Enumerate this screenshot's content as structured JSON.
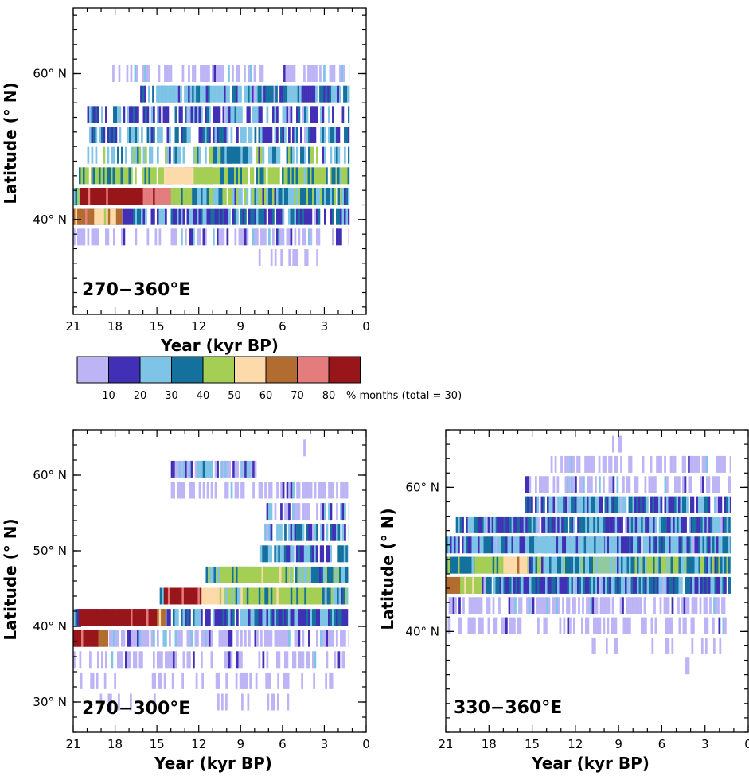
{
  "chart_data": [
    {
      "type": "heatmap",
      "panel_label": "270−360°E",
      "xlabel": "Year (kyr BP)",
      "ylabel": "Latitude (° N)",
      "xlim": [
        21,
        0
      ],
      "ylim": [
        27,
        69
      ],
      "xticks": [
        21,
        18,
        15,
        12,
        9,
        6,
        3,
        0
      ],
      "yticks": [
        {
          "value": 40,
          "label": "40° N"
        },
        {
          "value": 60,
          "label": "60° N"
        }
      ],
      "bands": [
        {
          "lat": 60,
          "from": 18.2,
          "to": 1.2,
          "base": 0,
          "core": 0.15,
          "gaps": 0.45,
          "seed": 11
        },
        {
          "lat": 57.2,
          "from": 16.2,
          "to": 1.2,
          "base": 1,
          "core": 0.8,
          "gaps": 0.05,
          "seed": 12
        },
        {
          "lat": 54.4,
          "from": 20.0,
          "to": 1.2,
          "base": 1,
          "core": 0.45,
          "gaps": 0.35,
          "seed": 13
        },
        {
          "lat": 51.6,
          "from": 20.0,
          "to": 1.2,
          "base": 1,
          "core": 0.5,
          "gaps": 0.35,
          "seed": 14
        },
        {
          "lat": 48.8,
          "from": 20.0,
          "to": 1.2,
          "base": 2,
          "core": 0.4,
          "gaps": 0.35,
          "seed": 15
        },
        {
          "lat": 46.0,
          "from": 20.6,
          "to": 1.2,
          "base": 3,
          "core": 0.55,
          "gaps": 0.1,
          "seed": 16
        },
        {
          "lat": 43.2,
          "from": 21.0,
          "to": 1.2,
          "base": 2,
          "core": 0.6,
          "gaps": 0.05,
          "seed": 17
        },
        {
          "lat": 40.4,
          "from": 21.0,
          "to": 1.2,
          "base": 1,
          "core": 0.5,
          "gaps": 0.1,
          "seed": 18
        },
        {
          "lat": 37.6,
          "from": 21.0,
          "to": 1.3,
          "base": 0,
          "core": 0.3,
          "gaps": 0.5,
          "seed": 19
        },
        {
          "lat": 34.8,
          "from": 8.0,
          "to": 3.5,
          "base": 0,
          "core": 0.1,
          "gaps": 0.7,
          "seed": 20
        }
      ],
      "hotspots": [
        {
          "lat": 43.2,
          "from": 20.5,
          "to": 16.0,
          "level": 8
        },
        {
          "lat": 43.2,
          "from": 16.0,
          "to": 14.0,
          "level": 7
        },
        {
          "lat": 40.4,
          "from": 21.0,
          "to": 19.5,
          "level": 6
        },
        {
          "lat": 40.4,
          "from": 19.5,
          "to": 17.5,
          "level": 5
        },
        {
          "lat": 46.0,
          "from": 14.5,
          "to": 12.5,
          "level": 5
        },
        {
          "lat": 46.0,
          "from": 12.5,
          "to": 11.0,
          "level": 4
        },
        {
          "lat": 43.2,
          "from": 14.0,
          "to": 12.5,
          "level": 4
        },
        {
          "lat": 48.8,
          "from": 11.0,
          "to": 8.5,
          "level": 3
        },
        {
          "lat": 57.2,
          "from": 15.0,
          "to": 13.5,
          "level": 2
        }
      ]
    },
    {
      "type": "heatmap",
      "panel_label": "270−300°E",
      "xlabel": "Year (kyr BP)",
      "ylabel": "Latitude (° N)",
      "xlim": [
        21,
        0
      ],
      "ylim": [
        26,
        66
      ],
      "xticks": [
        21,
        18,
        15,
        12,
        9,
        6,
        3,
        0
      ],
      "yticks": [
        {
          "value": 30,
          "label": "30° N"
        },
        {
          "value": 40,
          "label": "40° N"
        },
        {
          "value": 50,
          "label": "50° N"
        },
        {
          "value": 60,
          "label": "60° N"
        }
      ],
      "bands": [
        {
          "lat": 63.6,
          "from": 4.5,
          "to": 3.8,
          "base": 0,
          "core": 0,
          "gaps": 0.6,
          "seed": 31
        },
        {
          "lat": 60.8,
          "from": 14.0,
          "to": 7.5,
          "base": 0,
          "core": 0.6,
          "gaps": 0.2,
          "seed": 32
        },
        {
          "lat": 58.0,
          "from": 14.0,
          "to": 1.3,
          "base": 0,
          "core": 0.1,
          "gaps": 0.45,
          "seed": 33
        },
        {
          "lat": 55.2,
          "from": 7.3,
          "to": 1.3,
          "base": 0,
          "core": 0.35,
          "gaps": 0.35,
          "seed": 34
        },
        {
          "lat": 52.4,
          "from": 7.3,
          "to": 1.3,
          "base": 1,
          "core": 0.5,
          "gaps": 0.2,
          "seed": 35
        },
        {
          "lat": 49.6,
          "from": 7.6,
          "to": 1.3,
          "base": 1,
          "core": 0.6,
          "gaps": 0.1,
          "seed": 36
        },
        {
          "lat": 46.8,
          "from": 11.5,
          "to": 1.3,
          "base": 2,
          "core": 0.6,
          "gaps": 0.05,
          "seed": 37
        },
        {
          "lat": 44.0,
          "from": 14.8,
          "to": 1.3,
          "base": 2,
          "core": 0.6,
          "gaps": 0.05,
          "seed": 38
        },
        {
          "lat": 41.2,
          "from": 21.0,
          "to": 1.3,
          "base": 1,
          "core": 0.55,
          "gaps": 0.05,
          "seed": 39
        },
        {
          "lat": 38.4,
          "from": 21.0,
          "to": 1.3,
          "base": 0,
          "core": 0.3,
          "gaps": 0.35,
          "seed": 40
        },
        {
          "lat": 35.6,
          "from": 21.0,
          "to": 1.5,
          "base": 0,
          "core": 0.2,
          "gaps": 0.5,
          "seed": 41
        },
        {
          "lat": 32.8,
          "from": 20.5,
          "to": 2.0,
          "base": 0,
          "core": 0,
          "gaps": 0.75,
          "seed": 42
        },
        {
          "lat": 30.0,
          "from": 20.8,
          "to": 4.5,
          "base": 0,
          "core": 0,
          "gaps": 0.85,
          "seed": 43
        }
      ],
      "hotspots": [
        {
          "lat": 41.2,
          "from": 20.6,
          "to": 15.0,
          "level": 8
        },
        {
          "lat": 38.4,
          "from": 21.0,
          "to": 19.2,
          "level": 8
        },
        {
          "lat": 44.0,
          "from": 14.5,
          "to": 11.8,
          "level": 8
        },
        {
          "lat": 44.0,
          "from": 11.8,
          "to": 10.2,
          "level": 5
        },
        {
          "lat": 46.8,
          "from": 10.5,
          "to": 5.5,
          "level": 4
        },
        {
          "lat": 44.0,
          "from": 9.0,
          "to": 3.0,
          "level": 4
        },
        {
          "lat": 41.2,
          "from": 15.0,
          "to": 14.4,
          "level": 6
        },
        {
          "lat": 38.4,
          "from": 19.2,
          "to": 18.5,
          "level": 6
        },
        {
          "lat": 60.8,
          "from": 12.0,
          "to": 11.0,
          "level": 2
        }
      ]
    },
    {
      "type": "heatmap",
      "panel_label": "330−360°E",
      "xlabel": "Year (kyr BP)",
      "ylabel": "Latitude (° N)",
      "xlim": [
        21,
        0
      ],
      "ylim": [
        26,
        68
      ],
      "xticks": [
        21,
        18,
        15,
        12,
        9,
        6,
        3,
        0
      ],
      "yticks": [
        {
          "value": 40,
          "label": "40° N"
        },
        {
          "value": 60,
          "label": "60° N"
        }
      ],
      "bands": [
        {
          "lat": 66.0,
          "from": 10.0,
          "to": 8.8,
          "base": 0,
          "core": 0,
          "gaps": 0.7,
          "seed": 51
        },
        {
          "lat": 63.2,
          "from": 14.0,
          "to": 1.2,
          "base": 0,
          "core": 0.05,
          "gaps": 0.5,
          "seed": 52
        },
        {
          "lat": 60.4,
          "from": 15.5,
          "to": 1.2,
          "base": 0,
          "core": 0.1,
          "gaps": 0.4,
          "seed": 53
        },
        {
          "lat": 57.6,
          "from": 15.5,
          "to": 1.2,
          "base": 1,
          "core": 0.55,
          "gaps": 0.1,
          "seed": 54
        },
        {
          "lat": 54.8,
          "from": 20.3,
          "to": 1.2,
          "base": 1,
          "core": 0.6,
          "gaps": 0.1,
          "seed": 55
        },
        {
          "lat": 52.0,
          "from": 21.0,
          "to": 1.2,
          "base": 1,
          "core": 0.65,
          "gaps": 0.05,
          "seed": 56
        },
        {
          "lat": 49.2,
          "from": 21.0,
          "to": 1.2,
          "base": 2,
          "core": 0.6,
          "gaps": 0.02,
          "seed": 57
        },
        {
          "lat": 46.4,
          "from": 21.0,
          "to": 1.2,
          "base": 1,
          "core": 0.6,
          "gaps": 0.02,
          "seed": 58
        },
        {
          "lat": 43.6,
          "from": 20.8,
          "to": 1.5,
          "base": 0,
          "core": 0.2,
          "gaps": 0.4,
          "seed": 59
        },
        {
          "lat": 40.8,
          "from": 21.0,
          "to": 1.5,
          "base": 0,
          "core": 0.05,
          "gaps": 0.55,
          "seed": 60
        },
        {
          "lat": 38.0,
          "from": 11.0,
          "to": 1.5,
          "base": 0,
          "core": 0,
          "gaps": 0.75,
          "seed": 61
        },
        {
          "lat": 35.2,
          "from": 4.5,
          "to": 4.0,
          "base": 0,
          "core": 0,
          "gaps": 0.6,
          "seed": 62
        }
      ],
      "hotspots": [
        {
          "lat": 46.4,
          "from": 21.0,
          "to": 20.0,
          "level": 6
        },
        {
          "lat": 49.2,
          "from": 21.0,
          "to": 19.0,
          "level": 3
        },
        {
          "lat": 49.2,
          "from": 19.0,
          "to": 15.3,
          "level": 4
        },
        {
          "lat": 49.2,
          "from": 17.0,
          "to": 15.3,
          "level": 5
        },
        {
          "lat": 46.4,
          "from": 20.0,
          "to": 18.5,
          "level": 4
        },
        {
          "lat": 52.0,
          "from": 15.0,
          "to": 10.0,
          "level": 2
        }
      ]
    }
  ],
  "colorbar": {
    "colors": [
      "#bdb4f6",
      "#4130b5",
      "#7ec4e6",
      "#14719e",
      "#a4cf54",
      "#fcdaaa",
      "#b36c30",
      "#e47b7d",
      "#98161a"
    ],
    "tick_labels": [
      "10",
      "20",
      "30",
      "40",
      "50",
      "60",
      "70",
      "80"
    ],
    "unit_label": "% months (total = 30)"
  }
}
